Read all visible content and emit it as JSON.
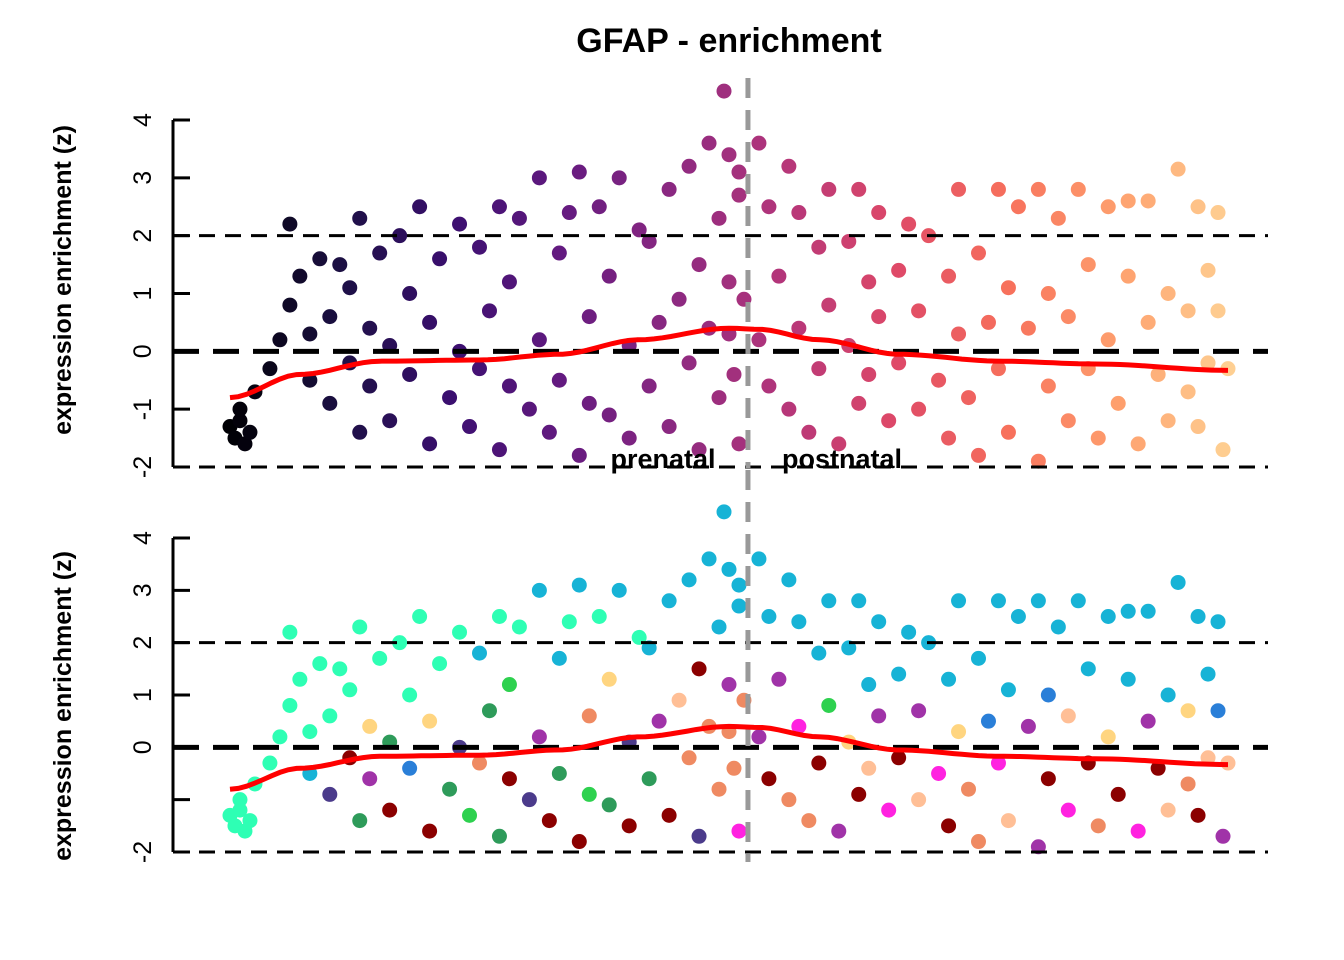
{
  "chart_data": [
    {
      "type": "scatter",
      "title": "GFAP - enrichment",
      "ylabel": "expression enrichment (z)",
      "ylim": [
        -2,
        4
      ],
      "yticks": [
        4,
        3,
        2,
        1,
        0,
        -1,
        -2
      ],
      "ytick_labels": [
        "4",
        "3",
        "2",
        "1",
        "0",
        "-1",
        "-2"
      ],
      "xlim": [
        0,
        100
      ],
      "hlines_dashed": [
        2,
        0,
        -2
      ],
      "vline_gray": 51.9,
      "period_labels": [
        "prenatal",
        "postnatal"
      ],
      "coloring": "gradient by x",
      "gradient_colors": [
        "#000004",
        "#1c1044",
        "#3b0f70",
        "#641a80",
        "#8c2981",
        "#b5367a",
        "#de4968",
        "#f7705c",
        "#fe9f6d",
        "#fecf92"
      ],
      "trend_color": "#ff0000"
    },
    {
      "type": "scatter",
      "ylabel": "expression enrichment (z)",
      "ylim": [
        -2,
        4
      ],
      "yticks": [
        4,
        3,
        2,
        1,
        0,
        -1,
        -2
      ],
      "ytick_labels": [
        "4",
        "3",
        "2",
        "1",
        "0",
        "",
        "-2"
      ],
      "xlim": [
        0,
        100
      ],
      "hlines_dashed": [
        2,
        0,
        -2
      ],
      "vline_gray": 51.9,
      "coloring": "by group",
      "group_colors": [
        "#2effb4",
        "#17b3d6",
        "#8b0000",
        "#2e9b5a",
        "#4b3b8b",
        "#ef8a62",
        "#ff22e0",
        "#a033a8",
        "#ffd580",
        "#2a7fd8",
        "#2ed14f",
        "#ffbf96"
      ],
      "trend_color": "#ff0000"
    }
  ],
  "points": [
    [
      0,
      -1.3,
      0
    ],
    [
      0.5,
      -1.5,
      0
    ],
    [
      1,
      -1.2,
      0
    ],
    [
      1.5,
      -1.6,
      0
    ],
    [
      2,
      -1.4,
      0
    ],
    [
      1,
      -1.0,
      0
    ],
    [
      2.5,
      -0.7,
      0
    ],
    [
      4,
      -0.3,
      0
    ],
    [
      5,
      0.2,
      0
    ],
    [
      6,
      0.8,
      0
    ],
    [
      6,
      2.2,
      0
    ],
    [
      7,
      1.3,
      0
    ],
    [
      8,
      -0.5,
      1
    ],
    [
      8,
      0.3,
      0
    ],
    [
      9,
      1.6,
      0
    ],
    [
      10,
      -0.9,
      4
    ],
    [
      10,
      0.6,
      0
    ],
    [
      11,
      1.5,
      0
    ],
    [
      12,
      -0.2,
      2
    ],
    [
      12,
      1.1,
      0
    ],
    [
      13,
      -1.4,
      3
    ],
    [
      13,
      2.3,
      0
    ],
    [
      14,
      0.4,
      8
    ],
    [
      14,
      -0.6,
      7
    ],
    [
      15,
      1.7,
      0
    ],
    [
      16,
      -1.2,
      2
    ],
    [
      16,
      0.1,
      3
    ],
    [
      17,
      2.0,
      0
    ],
    [
      18,
      -0.4,
      9
    ],
    [
      18,
      1.0,
      0
    ],
    [
      19,
      2.5,
      0
    ],
    [
      20,
      -1.6,
      2
    ],
    [
      20,
      0.5,
      8
    ],
    [
      21,
      1.6,
      0
    ],
    [
      22,
      -0.8,
      3
    ],
    [
      23,
      2.2,
      0
    ],
    [
      23,
      0.0,
      4
    ],
    [
      24,
      -1.3,
      10
    ],
    [
      25,
      1.8,
      1
    ],
    [
      25,
      -0.3,
      5
    ],
    [
      26,
      0.7,
      3
    ],
    [
      27,
      2.5,
      0
    ],
    [
      27,
      -1.7,
      3
    ],
    [
      28,
      1.2,
      10
    ],
    [
      28,
      -0.6,
      2
    ],
    [
      29,
      2.3,
      0
    ],
    [
      30,
      -1.0,
      4
    ],
    [
      31,
      3.0,
      1
    ],
    [
      31,
      0.2,
      7
    ],
    [
      32,
      -1.4,
      2
    ],
    [
      33,
      1.7,
      1
    ],
    [
      33,
      -0.5,
      3
    ],
    [
      34,
      2.4,
      0
    ],
    [
      35,
      3.1,
      1
    ],
    [
      35,
      -1.8,
      2
    ],
    [
      36,
      0.6,
      5
    ],
    [
      36,
      -0.9,
      10
    ],
    [
      37,
      2.5,
      0
    ],
    [
      38,
      -1.1,
      3
    ],
    [
      38,
      1.3,
      8
    ],
    [
      39,
      3.0,
      1
    ],
    [
      40,
      0.1,
      4
    ],
    [
      40,
      -1.5,
      2
    ],
    [
      41,
      2.1,
      0
    ],
    [
      42,
      -0.6,
      3
    ],
    [
      42,
      1.9,
      1
    ],
    [
      43,
      0.5,
      7
    ],
    [
      44,
      -1.3,
      2
    ],
    [
      44,
      2.8,
      1
    ],
    [
      45,
      0.9,
      11
    ],
    [
      46,
      3.2,
      1
    ],
    [
      46,
      -0.2,
      5
    ],
    [
      47,
      1.5,
      2
    ],
    [
      47,
      -1.7,
      4
    ],
    [
      48,
      3.6,
      1
    ],
    [
      48,
      0.4,
      5
    ],
    [
      49,
      2.3,
      1
    ],
    [
      49,
      -0.8,
      5
    ],
    [
      49.5,
      4.5,
      1
    ],
    [
      50,
      3.4,
      1
    ],
    [
      50,
      1.2,
      7
    ],
    [
      50,
      0.3,
      5
    ],
    [
      51,
      -1.6,
      6
    ],
    [
      51,
      2.7,
      1
    ],
    [
      51.5,
      0.9,
      5
    ],
    [
      50.5,
      -0.4,
      5
    ],
    [
      51,
      3.1,
      1
    ],
    [
      53,
      3.6,
      1
    ],
    [
      53,
      0.2,
      7
    ],
    [
      54,
      2.5,
      1
    ],
    [
      54,
      -0.6,
      2
    ],
    [
      55,
      1.3,
      7
    ],
    [
      56,
      3.2,
      1
    ],
    [
      56,
      -1.0,
      5
    ],
    [
      57,
      2.4,
      1
    ],
    [
      57,
      0.4,
      6
    ],
    [
      58,
      -1.4,
      5
    ],
    [
      59,
      1.8,
      1
    ],
    [
      59,
      -0.3,
      2
    ],
    [
      60,
      2.8,
      1
    ],
    [
      60,
      0.8,
      10
    ],
    [
      61,
      -1.6,
      7
    ],
    [
      62,
      1.9,
      1
    ],
    [
      62,
      0.1,
      8
    ],
    [
      63,
      2.8,
      1
    ],
    [
      63,
      -0.9,
      2
    ],
    [
      64,
      1.2,
      1
    ],
    [
      64,
      -0.4,
      11
    ],
    [
      65,
      2.4,
      1
    ],
    [
      65,
      0.6,
      7
    ],
    [
      66,
      -1.2,
      6
    ],
    [
      67,
      1.4,
      1
    ],
    [
      67,
      -0.2,
      2
    ],
    [
      68,
      2.2,
      1
    ],
    [
      69,
      0.7,
      7
    ],
    [
      69,
      -1.0,
      11
    ],
    [
      70,
      2.0,
      1
    ],
    [
      71,
      -0.5,
      6
    ],
    [
      72,
      1.3,
      1
    ],
    [
      72,
      -1.5,
      2
    ],
    [
      73,
      2.8,
      1
    ],
    [
      73,
      0.3,
      8
    ],
    [
      74,
      -0.8,
      5
    ],
    [
      75,
      1.7,
      1
    ],
    [
      75,
      -1.8,
      5
    ],
    [
      76,
      0.5,
      9
    ],
    [
      77,
      2.8,
      1
    ],
    [
      77,
      -0.3,
      6
    ],
    [
      78,
      1.1,
      1
    ],
    [
      78,
      -1.4,
      11
    ],
    [
      79,
      2.5,
      1
    ],
    [
      80,
      0.4,
      7
    ],
    [
      81,
      -1.9,
      7
    ],
    [
      81,
      2.8,
      1
    ],
    [
      82,
      1.0,
      9
    ],
    [
      82,
      -0.6,
      2
    ],
    [
      83,
      2.3,
      1
    ],
    [
      84,
      -1.2,
      6
    ],
    [
      84,
      0.6,
      11
    ],
    [
      85,
      2.8,
      1
    ],
    [
      86,
      -0.3,
      2
    ],
    [
      86,
      1.5,
      1
    ],
    [
      87,
      -1.5,
      5
    ],
    [
      88,
      2.5,
      1
    ],
    [
      88,
      0.2,
      8
    ],
    [
      89,
      -0.9,
      2
    ],
    [
      90,
      2.6,
      1
    ],
    [
      90,
      1.3,
      1
    ],
    [
      91,
      -1.6,
      6
    ],
    [
      92,
      2.6,
      1
    ],
    [
      92,
      0.5,
      7
    ],
    [
      93,
      -0.4,
      2
    ],
    [
      94,
      1.0,
      1
    ],
    [
      94,
      -1.2,
      11
    ],
    [
      95,
      3.15,
      1
    ],
    [
      96,
      0.7,
      8
    ],
    [
      96,
      -0.7,
      5
    ],
    [
      97,
      2.5,
      1
    ],
    [
      97,
      -1.3,
      2
    ],
    [
      98,
      1.4,
      1
    ],
    [
      98,
      -0.2,
      11
    ],
    [
      99,
      2.4,
      1
    ],
    [
      99,
      0.7,
      9
    ],
    [
      100,
      -0.3,
      11
    ],
    [
      99.5,
      -1.7,
      7
    ]
  ],
  "trend": {
    "x": [
      0,
      7,
      15,
      25,
      33,
      41,
      50,
      53,
      59,
      67,
      77,
      87,
      100
    ],
    "y": [
      -0.8,
      -0.4,
      -0.17,
      -0.15,
      -0.05,
      0.2,
      0.4,
      0.38,
      0.2,
      -0.05,
      -0.17,
      -0.22,
      -0.33
    ]
  }
}
